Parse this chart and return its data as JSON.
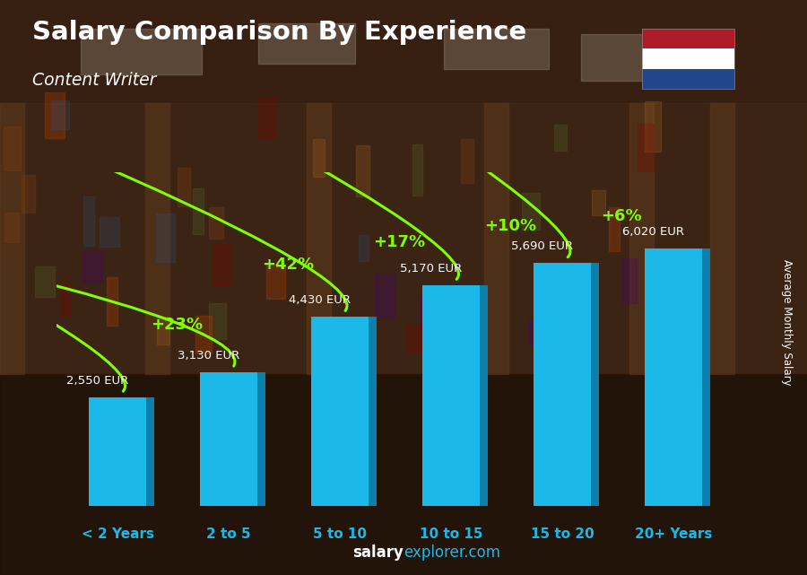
{
  "categories": [
    "< 2 Years",
    "2 to 5",
    "5 to 10",
    "10 to 15",
    "15 to 20",
    "20+ Years"
  ],
  "values": [
    2550,
    3130,
    4430,
    5170,
    5690,
    6020
  ],
  "labels": [
    "2,550 EUR",
    "3,130 EUR",
    "4,430 EUR",
    "5,170 EUR",
    "5,690 EUR",
    "6,020 EUR"
  ],
  "pct_changes": [
    null,
    "+23%",
    "+42%",
    "+17%",
    "+10%",
    "+6%"
  ],
  "bar_color_main": "#1BB8E8",
  "bar_color_right": "#0E7FAA",
  "bar_color_top": "#5FD4F4",
  "title": "Salary Comparison By Experience",
  "subtitle": "Content Writer",
  "ylabel": "Average Monthly Salary",
  "bg_color": "#2C1A0E",
  "title_color": "#FFFFFF",
  "subtitle_color": "#FFFFFF",
  "label_color": "#FFFFFF",
  "pct_color": "#7FFF00",
  "xticklabel_color": "#1BB8E8",
  "ylim": [
    0,
    7800
  ],
  "flag_colors": [
    "#AE1C28",
    "#FFFFFF",
    "#21468B"
  ],
  "watermark_bold": "salary",
  "watermark_normal": "explorer.com",
  "watermark_bold_color": "#FFFFFF",
  "watermark_normal_color": "#1BB8E8"
}
